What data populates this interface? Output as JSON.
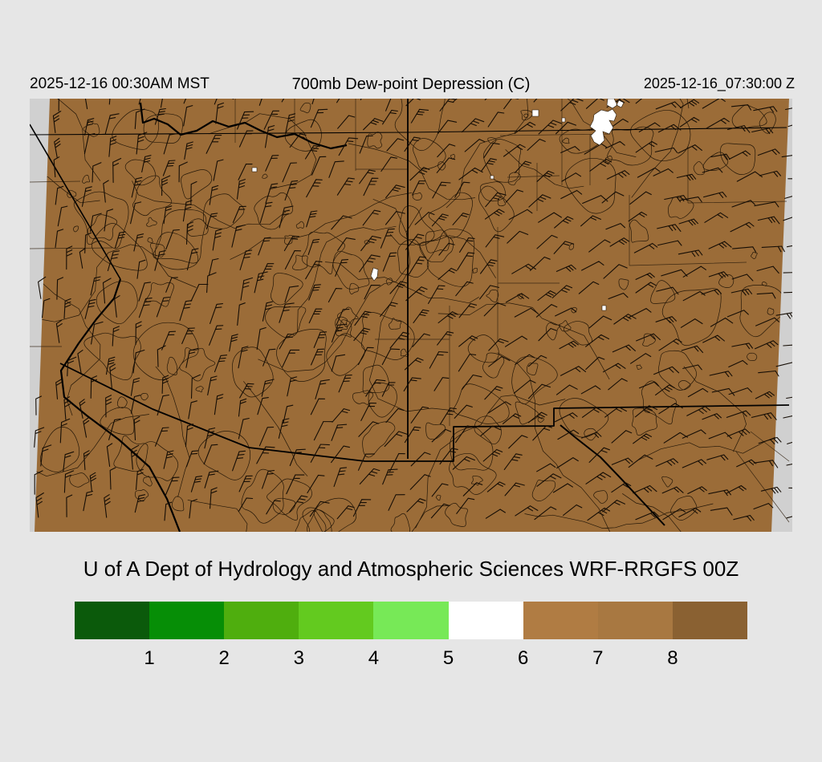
{
  "header": {
    "left_timestamp": "2025-12-16 00:30AM MST",
    "title": "700mb Dew-point Depression (C)",
    "right_timestamp": "2025-12-16_07:30:00 Z"
  },
  "caption": "U of A Dept of Hydrology and Atmospheric Sciences WRF-RRGFS 00Z",
  "chart_data": {
    "type": "heatmap",
    "field": "700mb Dew-point Depression",
    "units": "C",
    "title": "700mb Dew-point Depression (C)",
    "valid_time_local": "2025-12-16 00:30AM MST",
    "valid_time_utc": "2025-12-16_07:30:00 Z",
    "model_run": "WRF-RRGFS 00Z",
    "source": "U of A Dept of Hydrology and Atmospheric Sciences",
    "region": "Arizona / New Mexico and surrounding states",
    "colorbar": {
      "orientation": "horizontal",
      "tick_labels": [
        "1",
        "2",
        "3",
        "4",
        "5",
        "6",
        "7",
        "8"
      ],
      "bin_colors": [
        "#0b5a0b",
        "#068e06",
        "#4fae0e",
        "#63ca1f",
        "#77e957",
        "#ffffff",
        "#b07c43",
        "#a87841",
        "#8a6132"
      ]
    },
    "map_overview": {
      "dominant_fill_color": "#9b6c38",
      "dominant_bin": "brown (high dew-point depression) over nearly the entire domain",
      "low_value_spot_color": "#ffffff",
      "overlays": [
        "wind barbs",
        "contour lines",
        "state and county borders",
        "rivers"
      ]
    }
  },
  "map_colors": {
    "fill": "#9b6c38",
    "margin": "#d0d0d0",
    "contour": "#241708",
    "barb": "#150d05",
    "county": "#2c1d0c",
    "border": "#000000",
    "spot": "#ffffff"
  },
  "page": {
    "background": "#e6e6e6"
  }
}
